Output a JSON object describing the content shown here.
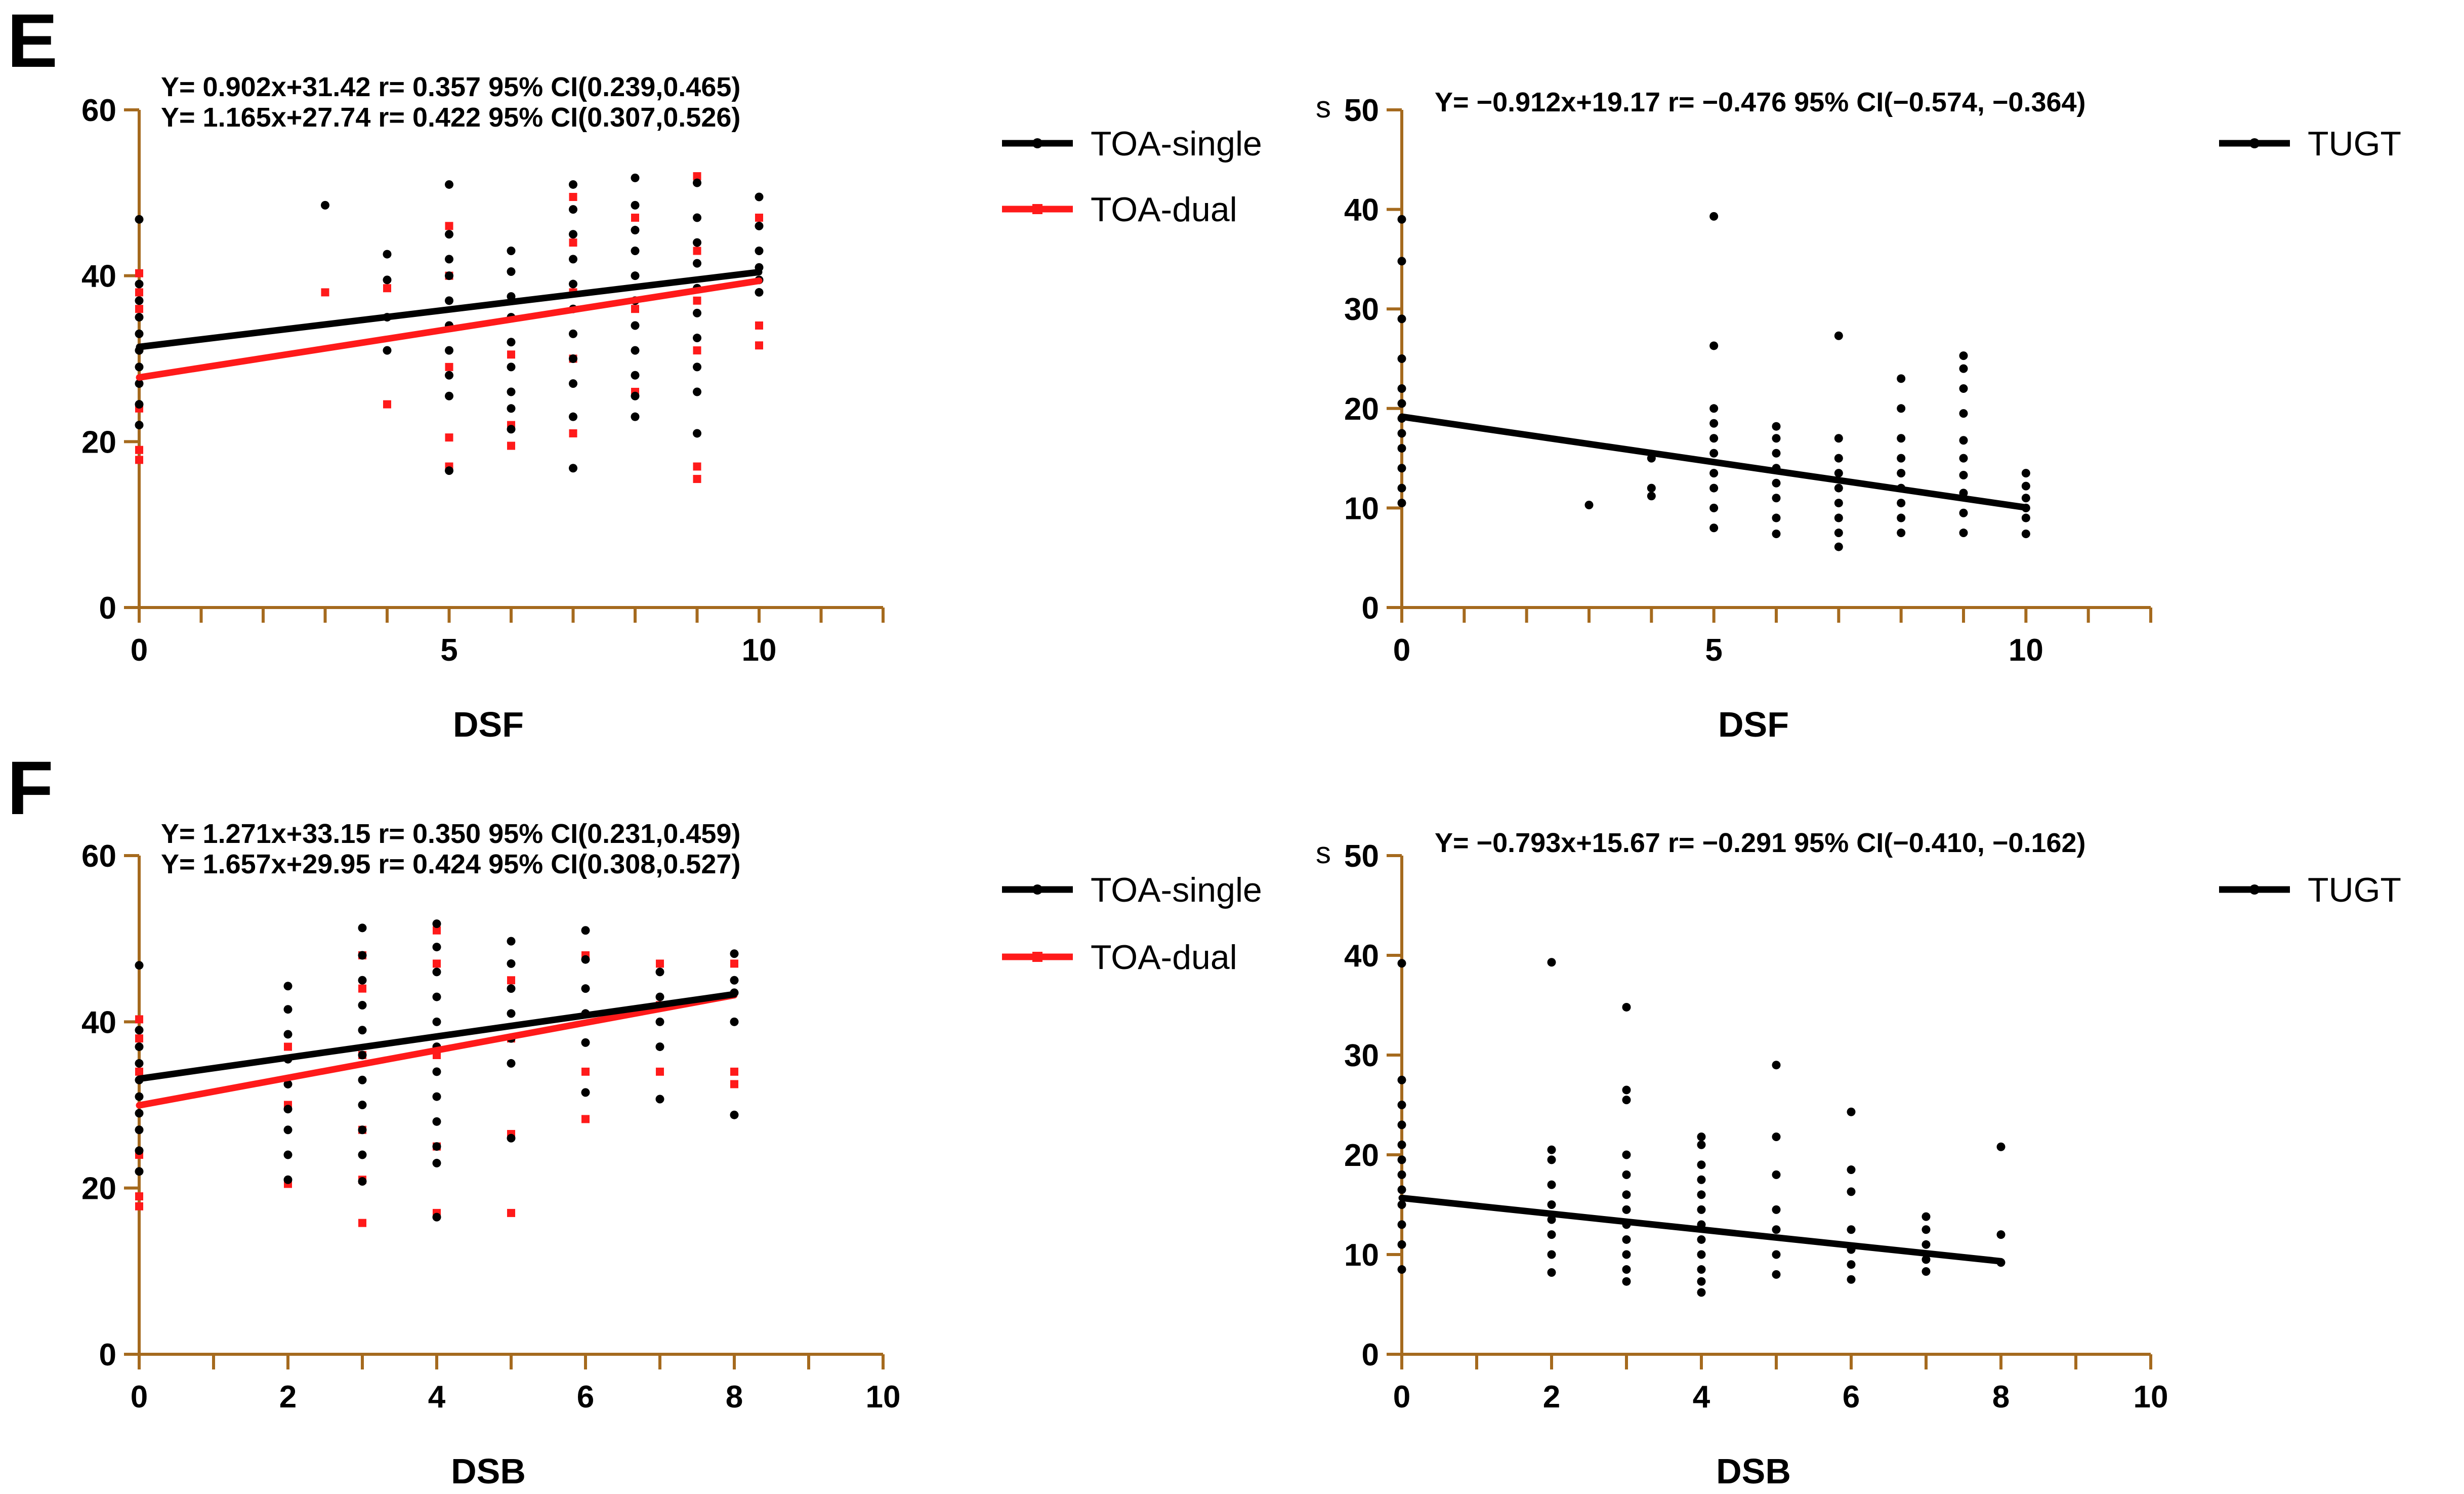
{
  "chart_data": [
    {
      "panel": "E",
      "type": "scatter",
      "xlabel": "DSF",
      "ylabel": "",
      "xlim": [
        0,
        12
      ],
      "ylim": [
        0,
        60
      ],
      "xticks": [
        "0",
        "5",
        "10"
      ],
      "xtick_values": [
        0,
        5,
        10
      ],
      "yticks": [
        "0",
        "20",
        "40",
        "60"
      ],
      "ytick_values": [
        0,
        20,
        40,
        60
      ],
      "annotations": [
        "Y= 0.902x+31.42  r= 0.357  95% CI(0.239,0.465)",
        "Y= 1.165x+27.74  r= 0.422  95% CI(0.307,0.526)"
      ],
      "legend": [
        "TOA-single",
        "TOA-dual"
      ],
      "series": [
        {
          "name": "TOA-single",
          "color": "#000000",
          "marker": "circle",
          "regression": {
            "slope": 0.902,
            "intercept": 31.42,
            "x_range": [
              0,
              10
            ]
          },
          "x": [
            0,
            0,
            0,
            0,
            0,
            0,
            0,
            0,
            0,
            0,
            3,
            4,
            4,
            4,
            4,
            5,
            5,
            5,
            5,
            5,
            5,
            5,
            5,
            5,
            5,
            6,
            6,
            6,
            6,
            6,
            6,
            6,
            6,
            6,
            7,
            7,
            7,
            7,
            7,
            7,
            7,
            7,
            7,
            7,
            7,
            8,
            8,
            8,
            8,
            8,
            8,
            8,
            8,
            8,
            8,
            8,
            9,
            9,
            9,
            9,
            9,
            9,
            9,
            9,
            9,
            9,
            10,
            10,
            10,
            10,
            10,
            10
          ],
          "y": [
            46.8,
            39,
            37,
            35,
            33,
            31,
            29,
            27,
            24.5,
            22,
            48.5,
            42.6,
            39.5,
            35,
            31,
            51,
            45,
            42,
            40,
            37,
            34,
            31,
            28,
            25.5,
            16.5,
            43,
            40.5,
            37.5,
            35,
            32,
            29,
            26,
            24,
            21.5,
            51,
            48,
            45,
            42,
            39,
            36,
            33,
            30,
            27,
            23,
            16.8,
            51.8,
            48.5,
            45.5,
            43,
            40,
            37,
            34,
            31,
            28,
            25.5,
            23,
            51.2,
            47,
            44,
            41.5,
            38.5,
            35.5,
            32.5,
            29,
            26,
            21,
            49.5,
            46,
            43,
            41,
            39.5,
            38
          ]
        },
        {
          "name": "TOA-dual",
          "color": "#ff1a1a",
          "marker": "square",
          "regression": {
            "slope": 1.165,
            "intercept": 27.74,
            "x_range": [
              0,
              10
            ]
          },
          "x": [
            0,
            0,
            0,
            0,
            0,
            0,
            3,
            4,
            4,
            5,
            5,
            5,
            5,
            5,
            6,
            6,
            6,
            7,
            7,
            7,
            7,
            7,
            8,
            8,
            8,
            9,
            9,
            9,
            9,
            9,
            9,
            10,
            10,
            10
          ],
          "y": [
            40.3,
            38,
            36,
            24,
            19,
            17.8,
            38,
            38.5,
            24.5,
            46,
            40,
            29,
            20.5,
            17,
            30.5,
            22,
            19.5,
            49.5,
            44,
            38,
            30,
            21,
            47,
            36,
            26,
            52,
            43,
            37,
            31,
            17,
            15.5,
            47,
            34,
            31.6
          ]
        }
      ]
    },
    {
      "panel": "E-right",
      "type": "scatter",
      "xlabel": "DSF",
      "ylabel": "s",
      "xlim": [
        0,
        12
      ],
      "ylim": [
        0,
        50
      ],
      "xticks": [
        "0",
        "5",
        "10"
      ],
      "xtick_values": [
        0,
        5,
        10
      ],
      "yticks": [
        "0",
        "10",
        "20",
        "30",
        "40",
        "50"
      ],
      "ytick_values": [
        0,
        10,
        20,
        30,
        40,
        50
      ],
      "annotations": [
        "Y= −0.912x+19.17  r= −0.476  95% CI(−0.574, −0.364)"
      ],
      "legend": [
        "TUGT"
      ],
      "series": [
        {
          "name": "TUGT",
          "color": "#000000",
          "marker": "circle",
          "regression": {
            "slope": -0.912,
            "intercept": 19.17,
            "x_range": [
              0,
              10
            ]
          },
          "x": [
            0,
            0,
            0,
            0,
            0,
            0,
            0,
            0,
            0,
            0,
            0,
            0,
            3,
            4,
            4,
            4,
            5,
            5,
            5,
            5,
            5,
            5,
            5,
            5,
            5,
            5,
            6,
            6,
            6,
            6,
            6,
            6,
            6,
            6,
            7,
            7,
            7,
            7,
            7,
            7,
            7,
            7,
            7,
            8,
            8,
            8,
            8,
            8,
            8,
            8,
            8,
            8,
            9,
            9,
            9,
            9,
            9,
            9,
            9,
            9,
            9,
            9,
            10,
            10,
            10,
            10,
            10,
            10
          ],
          "y": [
            39,
            34.8,
            29,
            25,
            22,
            20.5,
            19,
            17.5,
            16,
            14,
            12,
            10.5,
            10.3,
            15,
            12,
            11.2,
            39.3,
            26.3,
            20,
            18.5,
            17,
            15.5,
            13.5,
            12,
            10,
            8,
            18.2,
            17,
            15.5,
            14,
            12.5,
            11,
            9,
            7.4,
            27.3,
            17,
            15,
            13.5,
            12,
            10.5,
            9,
            7.5,
            6.1,
            23,
            20,
            17,
            15,
            13.5,
            12,
            10.5,
            9,
            7.5,
            25.3,
            24,
            22,
            19.5,
            16.8,
            15,
            13.3,
            11.5,
            9.5,
            7.5,
            13.5,
            12.2,
            11,
            10,
            9,
            7.4
          ]
        }
      ]
    },
    {
      "panel": "F",
      "type": "scatter",
      "xlabel": "DSB",
      "ylabel": "",
      "xlim": [
        0,
        10
      ],
      "ylim": [
        0,
        60
      ],
      "xticks": [
        "0",
        "2",
        "4",
        "6",
        "8",
        "10"
      ],
      "xtick_values": [
        0,
        2,
        4,
        6,
        8,
        10
      ],
      "yticks": [
        "0",
        "20",
        "40",
        "60"
      ],
      "ytick_values": [
        0,
        20,
        40,
        60
      ],
      "annotations": [
        "Y= 1.271x+33.15  r= 0.350  95% CI(0.231,0.459)",
        "Y= 1.657x+29.95  r= 0.424  95% CI(0.308,0.527)"
      ],
      "legend": [
        "TOA-single",
        "TOA-dual"
      ],
      "series": [
        {
          "name": "TOA-single",
          "color": "#000000",
          "marker": "circle",
          "regression": {
            "slope": 1.271,
            "intercept": 33.15,
            "x_range": [
              0,
              8
            ]
          },
          "x": [
            0,
            0,
            0,
            0,
            0,
            0,
            0,
            0,
            0,
            0,
            2,
            2,
            2,
            2,
            2,
            2,
            2,
            2,
            2,
            3,
            3,
            3,
            3,
            3,
            3,
            3,
            3,
            3,
            3,
            3,
            4,
            4,
            4,
            4,
            4,
            4,
            4,
            4,
            4,
            4,
            4,
            4,
            5,
            5,
            5,
            5,
            5,
            5,
            5,
            6,
            6,
            6,
            6,
            6,
            6,
            7,
            7,
            7,
            7,
            7,
            8,
            8,
            8,
            8,
            8
          ],
          "y": [
            46.8,
            39,
            37,
            35,
            33,
            31,
            29,
            27,
            24.5,
            22,
            44.3,
            41.5,
            38.5,
            35.5,
            32.5,
            29.5,
            27,
            24,
            21,
            51.3,
            48,
            45,
            42,
            39,
            36,
            33,
            30,
            27,
            24,
            20.8,
            51.8,
            49,
            46,
            43,
            40,
            37,
            34,
            31,
            28,
            25,
            23,
            16.5,
            49.7,
            47,
            44,
            41,
            38,
            35,
            26,
            51,
            47.5,
            44,
            41,
            37.5,
            31.5,
            46,
            43,
            40,
            37,
            30.7,
            48.2,
            45,
            43.5,
            40,
            28.8
          ]
        },
        {
          "name": "TOA-dual",
          "color": "#ff1a1a",
          "marker": "square",
          "regression": {
            "slope": 1.657,
            "intercept": 29.95,
            "x_range": [
              0,
              8
            ]
          },
          "x": [
            0,
            0,
            0,
            0,
            0,
            0,
            2,
            2,
            2,
            3,
            3,
            3,
            3,
            3,
            3,
            4,
            4,
            4,
            4,
            4,
            5,
            5,
            5,
            5,
            6,
            6,
            6,
            7,
            7,
            7,
            8,
            8,
            8
          ],
          "y": [
            40.3,
            38,
            34,
            24,
            19,
            17.8,
            37,
            30,
            20.5,
            48,
            44,
            36,
            27,
            21,
            15.8,
            51,
            47,
            36,
            25,
            17,
            45,
            38,
            26.5,
            17,
            48,
            34,
            28.3,
            47,
            42,
            34,
            47,
            34,
            32.5
          ]
        }
      ]
    },
    {
      "panel": "F-right",
      "type": "scatter",
      "xlabel": "DSB",
      "ylabel": "s",
      "xlim": [
        0,
        10
      ],
      "ylim": [
        0,
        50
      ],
      "xticks": [
        "0",
        "2",
        "4",
        "6",
        "8",
        "10"
      ],
      "xtick_values": [
        0,
        2,
        4,
        6,
        8,
        10
      ],
      "yticks": [
        "0",
        "10",
        "20",
        "30",
        "40",
        "50"
      ],
      "ytick_values": [
        0,
        10,
        20,
        30,
        40,
        50
      ],
      "annotations": [
        "Y= −0.793x+15.67  r= −0.291   95% CI(−0.410, −0.162)"
      ],
      "legend": [
        "TUGT"
      ],
      "series": [
        {
          "name": "TUGT",
          "color": "#000000",
          "marker": "circle",
          "regression": {
            "slope": -0.793,
            "intercept": 15.67,
            "x_range": [
              0,
              8
            ]
          },
          "x": [
            0,
            0,
            0,
            0,
            0,
            0,
            0,
            0,
            0,
            0,
            0,
            0,
            2,
            2,
            2,
            2,
            2,
            2,
            2,
            2,
            2,
            3,
            3,
            3,
            3,
            3,
            3,
            3,
            3,
            3,
            3,
            3,
            3,
            4,
            4,
            4,
            4,
            4,
            4,
            4,
            4,
            4,
            4,
            4,
            4,
            5,
            5,
            5,
            5,
            5,
            5,
            5,
            6,
            6,
            6,
            6,
            6,
            6,
            6,
            7,
            7,
            7,
            7,
            7,
            8,
            8,
            8
          ],
          "y": [
            39.2,
            27.5,
            25,
            23,
            21,
            19.5,
            18,
            16.5,
            15,
            13,
            11,
            8.5,
            39.3,
            20.5,
            19.5,
            17,
            15,
            13.5,
            12,
            10,
            8.2,
            34.8,
            26.5,
            25.5,
            20,
            18,
            16,
            14.5,
            13,
            11.5,
            10,
            8.5,
            7.3,
            21.8,
            21,
            19,
            17.5,
            16,
            14.5,
            13,
            11.5,
            10,
            8.5,
            7.3,
            6.2,
            29,
            21.8,
            18,
            14.5,
            12.5,
            10,
            8,
            24.3,
            18.5,
            16.3,
            12.5,
            10.5,
            9,
            7.5,
            13.8,
            12.5,
            11,
            9.5,
            8.3,
            20.8,
            12,
            9.2
          ]
        }
      ]
    }
  ],
  "panel_letters": {
    "e": "E",
    "f": "F"
  },
  "colors": {
    "axis": "#a56a1e",
    "black": "#000000",
    "red": "#ff1a1a"
  }
}
